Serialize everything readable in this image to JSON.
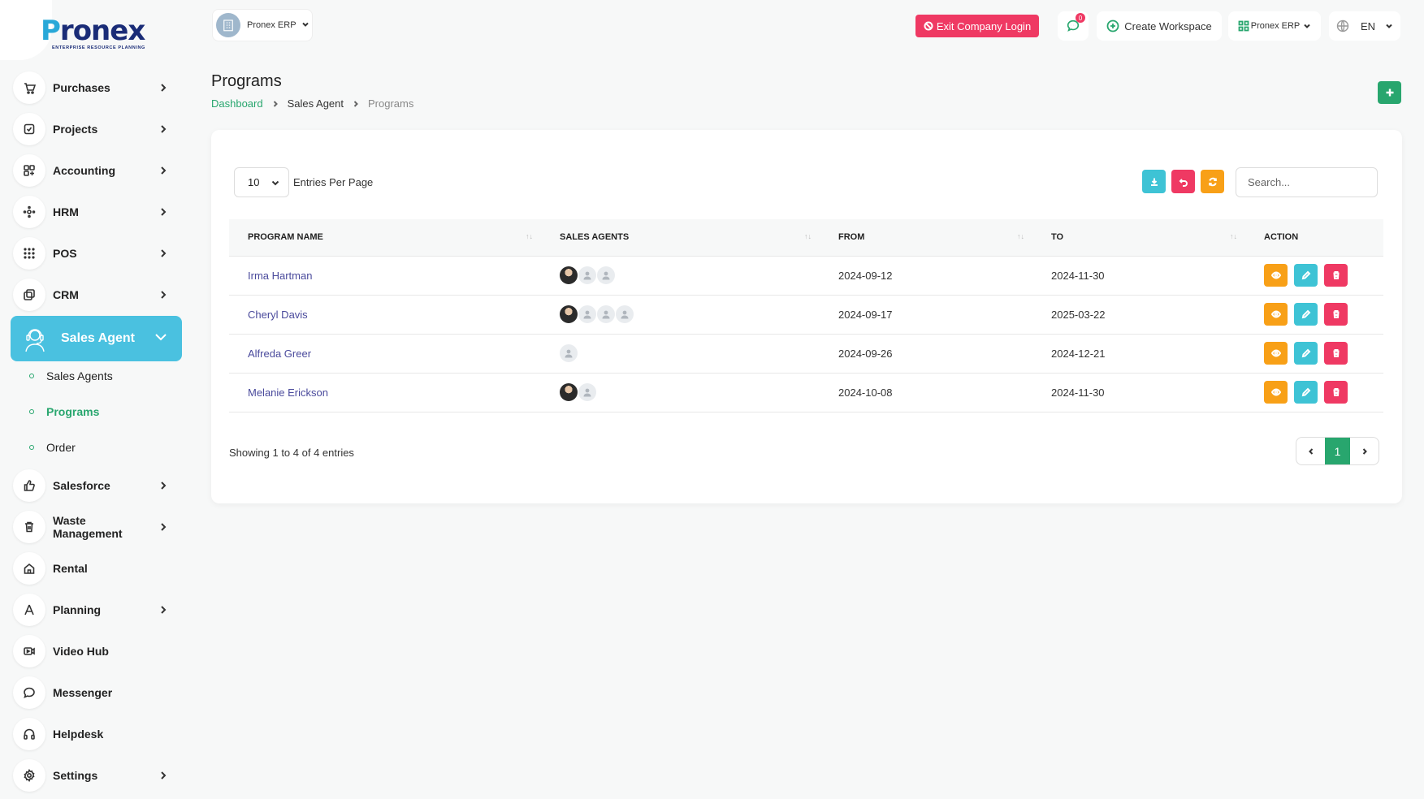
{
  "brand": {
    "logo_text_first": "P",
    "logo_text_rest": "ronex",
    "logo_tagline": "ENTERPRISE RESOURCE PLANNING"
  },
  "colors": {
    "primary_green": "#28a66e",
    "sidebar_active": "#4ac1e0",
    "danger": "#ef3963",
    "warning": "#f8a017",
    "info": "#3ec3d5"
  },
  "sidebar": {
    "items_top": [
      {
        "label": "Purchases",
        "icon": "cart-icon",
        "has_children": true
      },
      {
        "label": "Projects",
        "icon": "checkbox-icon",
        "has_children": true
      },
      {
        "label": "Accounting",
        "icon": "grid-icon",
        "has_children": true
      },
      {
        "label": "HRM",
        "icon": "network-icon",
        "has_children": true
      },
      {
        "label": "POS",
        "icon": "dots-grid-icon",
        "has_children": true
      },
      {
        "label": "CRM",
        "icon": "layers-icon",
        "has_children": true
      }
    ],
    "active": {
      "label": "Sales Agent",
      "icon": "agent-headset-icon"
    },
    "sub_items": [
      {
        "label": "Sales Agents",
        "active": false
      },
      {
        "label": "Programs",
        "active": true
      },
      {
        "label": "Order",
        "active": false
      }
    ],
    "items_bottom": [
      {
        "label": "Salesforce",
        "icon": "thumbs-up-icon",
        "has_children": true
      },
      {
        "label": "Waste Management",
        "icon": "trash-icon",
        "has_children": true
      },
      {
        "label": "Rental",
        "icon": "home-icon",
        "has_children": false
      },
      {
        "label": "Planning",
        "icon": "compass-icon",
        "has_children": true
      },
      {
        "label": "Video Hub",
        "icon": "video-icon",
        "has_children": false
      },
      {
        "label": "Messenger",
        "icon": "chat-icon",
        "has_children": false
      },
      {
        "label": "Helpdesk",
        "icon": "headphones-icon",
        "has_children": false
      },
      {
        "label": "Settings",
        "icon": "gear-icon",
        "has_children": true
      }
    ]
  },
  "topbar": {
    "workspace": "Pronex ERP",
    "exit_label": "Exit Company Login",
    "message_count": "0",
    "create_workspace": "Create Workspace",
    "company": "Pronex ERP",
    "language": "EN"
  },
  "page": {
    "title": "Programs",
    "breadcrumb": [
      "Dashboard",
      "Sales Agent",
      "Programs"
    ]
  },
  "table_controls": {
    "entries_value": "10",
    "entries_label": "Entries Per Page",
    "search_placeholder": "Search..."
  },
  "table": {
    "columns": [
      "PROGRAM NAME",
      "SALES AGENTS",
      "FROM",
      "TO",
      "ACTION"
    ],
    "rows": [
      {
        "name": "Irma Hartman",
        "agents": [
          "photo",
          "placeholder",
          "placeholder"
        ],
        "from": "2024-09-12",
        "to": "2024-11-30"
      },
      {
        "name": "Cheryl Davis",
        "agents": [
          "photo",
          "placeholder",
          "placeholder",
          "placeholder"
        ],
        "from": "2024-09-17",
        "to": "2025-03-22"
      },
      {
        "name": "Alfreda Greer",
        "agents": [
          "placeholder"
        ],
        "from": "2024-09-26",
        "to": "2024-12-21"
      },
      {
        "name": "Melanie Erickson",
        "agents": [
          "photo",
          "placeholder"
        ],
        "from": "2024-10-08",
        "to": "2024-11-30"
      }
    ]
  },
  "footer": {
    "showing": "Showing 1 to 4 of 4 entries",
    "current_page": "1"
  }
}
